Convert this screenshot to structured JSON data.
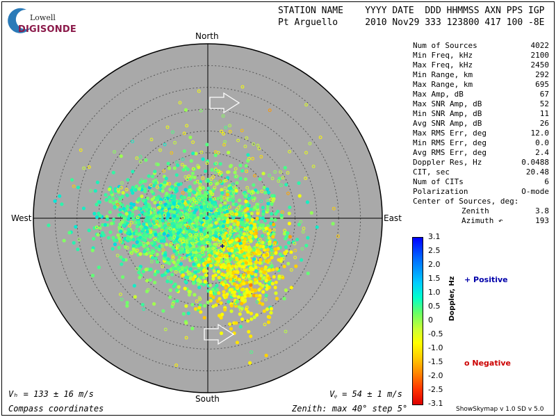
{
  "header": {
    "line1": "STATION NAME    YYYY DATE  DDD HHMMSS AXN PPS IGP",
    "line2": "Pt Arguello     2010 Nov29 333 123800 417 100 -8E"
  },
  "logo": {
    "top": "Lowell",
    "bottom": "DIGISONDE"
  },
  "directions": {
    "north": "North",
    "south": "South",
    "west": "West",
    "east": "East"
  },
  "stats": [
    {
      "label": "Num of Sources",
      "value": "4022"
    },
    {
      "label": "Min Freq, kHz",
      "value": "2100"
    },
    {
      "label": "Max Freq, kHz",
      "value": "2450"
    },
    {
      "label": "Min Range, km",
      "value": "292"
    },
    {
      "label": "Max Range, km",
      "value": "695"
    },
    {
      "label": "Max Amp, dB",
      "value": "67"
    },
    {
      "label": "Max SNR Amp, dB",
      "value": "52"
    },
    {
      "label": "Min SNR Amp, dB",
      "value": "11"
    },
    {
      "label": "Avg SNR Amp, dB",
      "value": "26"
    },
    {
      "label": "Max RMS Err, deg",
      "value": "12.0"
    },
    {
      "label": "Min RMS Err, deg",
      "value": "0.0"
    },
    {
      "label": "Avg RMS Err, deg",
      "value": "2.4"
    },
    {
      "label": "Doppler Res, Hz",
      "value": "0.0488"
    },
    {
      "label": "CIT, sec",
      "value": "20.48"
    },
    {
      "label": "Num of CITs",
      "value": "6"
    },
    {
      "label": "Polarization",
      "value": "O-mode"
    },
    {
      "label": "Center of Sources, deg:",
      "value": ""
    }
  ],
  "center": [
    {
      "label": "Zenith",
      "value": "3.8"
    },
    {
      "label": "Azimuth ↶",
      "value": "193"
    }
  ],
  "colorbar": {
    "label": "Doppler, Hz",
    "ticks": [
      "3.1",
      "2.5",
      "2.0",
      "1.5",
      "1.0",
      "0.5",
      "0",
      "-0.5",
      "-1.0",
      "-1.5",
      "-2.0",
      "-2.5",
      "-3.1"
    ]
  },
  "legend": {
    "positive": "+ Positive",
    "negative": "o Negative"
  },
  "footer": {
    "vh": "Vₕ = 133 ± 16 m/s",
    "vz": "Vᵩ = 54 ± 1 m/s",
    "compass": "Compass coordinates",
    "zenith": "Zenith: max 40°  step 5°",
    "version": "ShowSkymap v 1.0   SD v 5.0"
  },
  "chart_data": {
    "type": "scatter",
    "zenith_max_deg": 40,
    "zenith_step_deg": 5,
    "num_sources": 4022,
    "doppler_range_hz": [
      -3.1,
      3.1
    ],
    "center_of_sources": {
      "zenith_deg": 3.8,
      "azimuth_deg": 193
    },
    "cluster_centers": [
      {
        "zenith_deg": 4,
        "azimuth_deg": 180,
        "doppler_hz": 0.2
      },
      {
        "zenith_deg": 14,
        "azimuth_deg": 145,
        "doppler_hz": -1.2
      },
      {
        "zenith_deg": 10,
        "azimuth_deg": 270,
        "doppler_hz": 0.5
      }
    ],
    "colors": {
      "disk": "#a9a9a9",
      "grid": "#555555"
    }
  }
}
